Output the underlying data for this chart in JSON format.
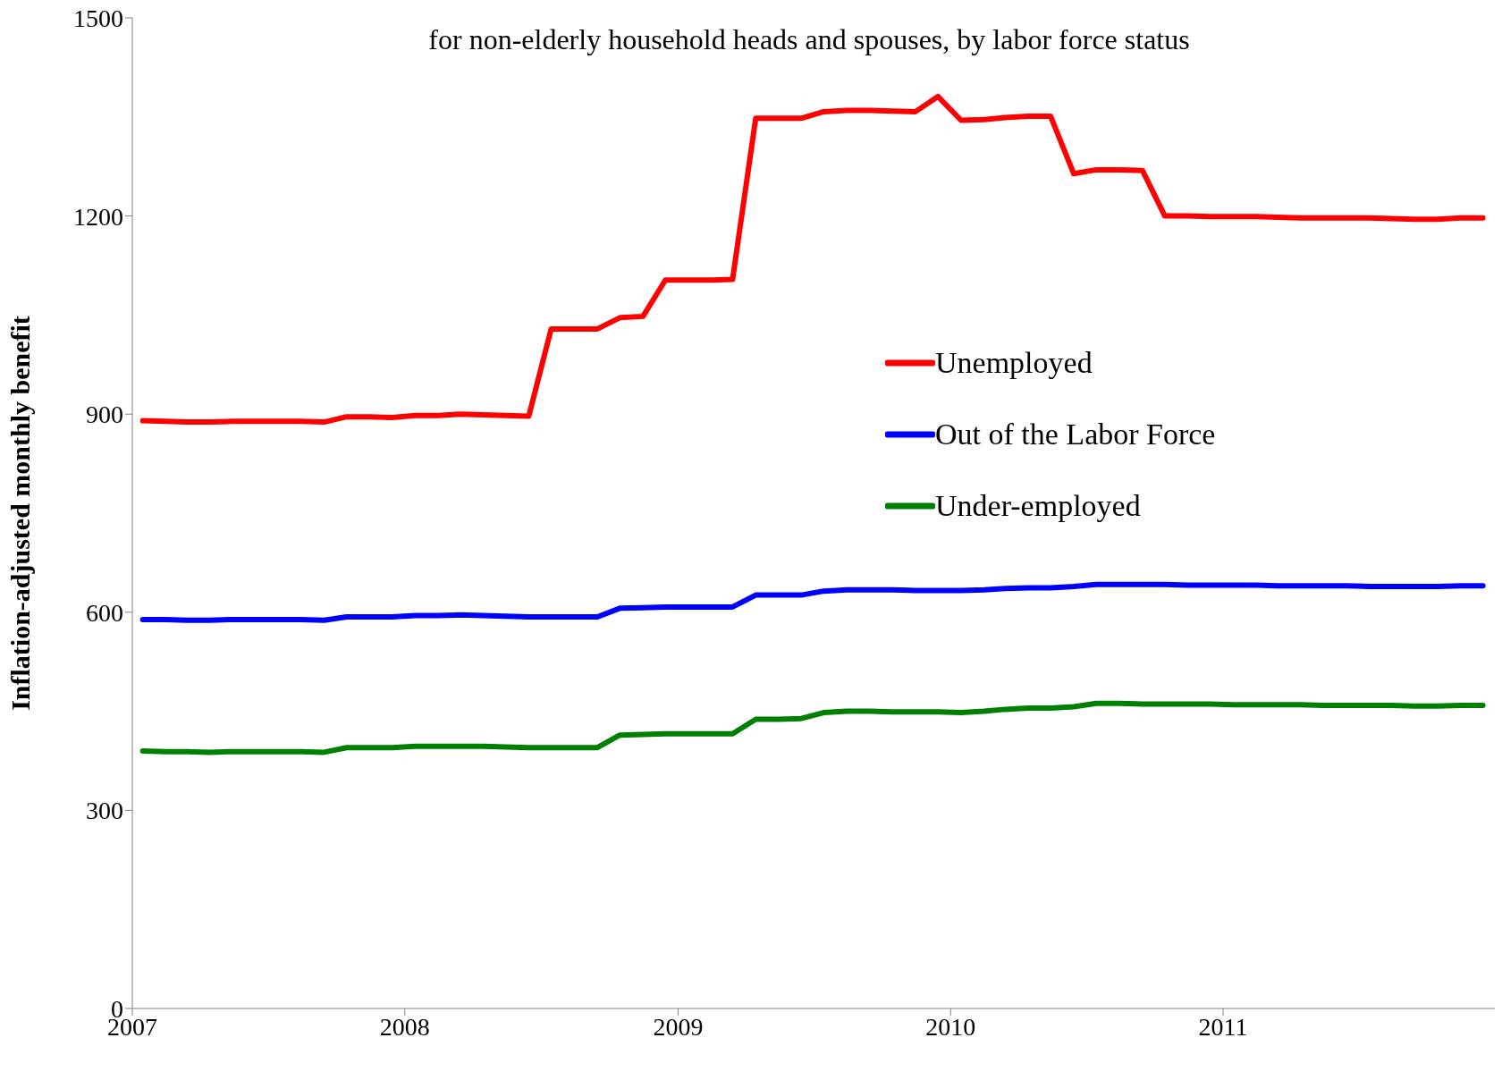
{
  "chart_data": {
    "type": "line",
    "subtitle": "for non-elderly household heads and spouses, by labor force status",
    "ylabel": "Inflation-adjusted monthly benefit",
    "x": [
      "2007-01-15",
      "2007-02-15",
      "2007-03-15",
      "2007-04-15",
      "2007-05-15",
      "2007-06-15",
      "2007-07-15",
      "2007-08-15",
      "2007-09-15",
      "2007-10-15",
      "2007-11-15",
      "2007-12-15",
      "2008-01-15",
      "2008-02-15",
      "2008-03-15",
      "2008-04-15",
      "2008-05-15",
      "2008-06-15",
      "2008-07-15",
      "2008-08-15",
      "2008-09-15",
      "2008-10-15",
      "2008-11-15",
      "2008-12-15",
      "2009-01-15",
      "2009-02-15",
      "2009-03-15",
      "2009-04-15",
      "2009-05-15",
      "2009-06-15",
      "2009-07-15",
      "2009-08-15",
      "2009-09-15",
      "2009-10-15",
      "2009-11-15",
      "2009-12-15",
      "2010-01-15",
      "2010-02-15",
      "2010-03-15",
      "2010-04-15",
      "2010-05-15",
      "2010-06-15",
      "2010-07-15",
      "2010-08-15",
      "2010-09-15",
      "2010-10-15",
      "2010-11-15",
      "2010-12-15",
      "2011-01-15",
      "2011-02-15",
      "2011-03-15",
      "2011-04-15",
      "2011-05-15",
      "2011-06-15",
      "2011-07-15",
      "2011-08-15",
      "2011-09-15",
      "2011-10-15",
      "2011-11-15",
      "2011-12-15"
    ],
    "series": [
      {
        "name": "Unemployed",
        "color": "#ff0000",
        "values": [
          890,
          889,
          888,
          888,
          889,
          889,
          889,
          889,
          888,
          896,
          896,
          895,
          898,
          898,
          900,
          899,
          898,
          897,
          1029,
          1029,
          1029,
          1046,
          1048,
          1103,
          1103,
          1103,
          1104,
          1348,
          1348,
          1348,
          1358,
          1360,
          1360,
          1359,
          1358,
          1381,
          1345,
          1346,
          1349,
          1351,
          1351,
          1264,
          1270,
          1270,
          1269,
          1200,
          1200,
          1199,
          1199,
          1199,
          1198,
          1197,
          1197,
          1197,
          1197,
          1196,
          1195,
          1195,
          1197,
          1197
        ]
      },
      {
        "name": "Out of the Labor Force",
        "color": "#0000ff",
        "values": [
          589,
          589,
          588,
          588,
          589,
          589,
          589,
          589,
          588,
          593,
          593,
          593,
          595,
          595,
          596,
          595,
          594,
          593,
          593,
          593,
          593,
          606,
          607,
          608,
          608,
          608,
          608,
          626,
          626,
          626,
          632,
          634,
          634,
          634,
          633,
          633,
          633,
          634,
          636,
          637,
          637,
          639,
          642,
          642,
          642,
          642,
          641,
          641,
          641,
          641,
          640,
          640,
          640,
          640,
          639,
          639,
          639,
          639,
          640,
          640
        ]
      },
      {
        "name": "Under-employed",
        "color": "#008000",
        "values": [
          390,
          389,
          389,
          388,
          389,
          389,
          389,
          389,
          388,
          395,
          395,
          395,
          397,
          397,
          397,
          397,
          396,
          395,
          395,
          395,
          395,
          414,
          415,
          416,
          416,
          416,
          416,
          438,
          438,
          439,
          448,
          450,
          450,
          449,
          449,
          449,
          448,
          450,
          453,
          455,
          455,
          457,
          462,
          462,
          461,
          461,
          461,
          461,
          460,
          460,
          460,
          460,
          459,
          459,
          459,
          459,
          458,
          458,
          459,
          459
        ]
      }
    ],
    "xlim": [
      "2007-01-01",
      "2011-12-31"
    ],
    "xticks": [
      "2007",
      "2008",
      "2009",
      "2010",
      "2011"
    ],
    "ylim": [
      0,
      1500
    ],
    "yticks": [
      0,
      300,
      600,
      900,
      1200,
      1500
    ],
    "grid": false,
    "legend": "right",
    "marker": "none",
    "line_style": "solid"
  }
}
